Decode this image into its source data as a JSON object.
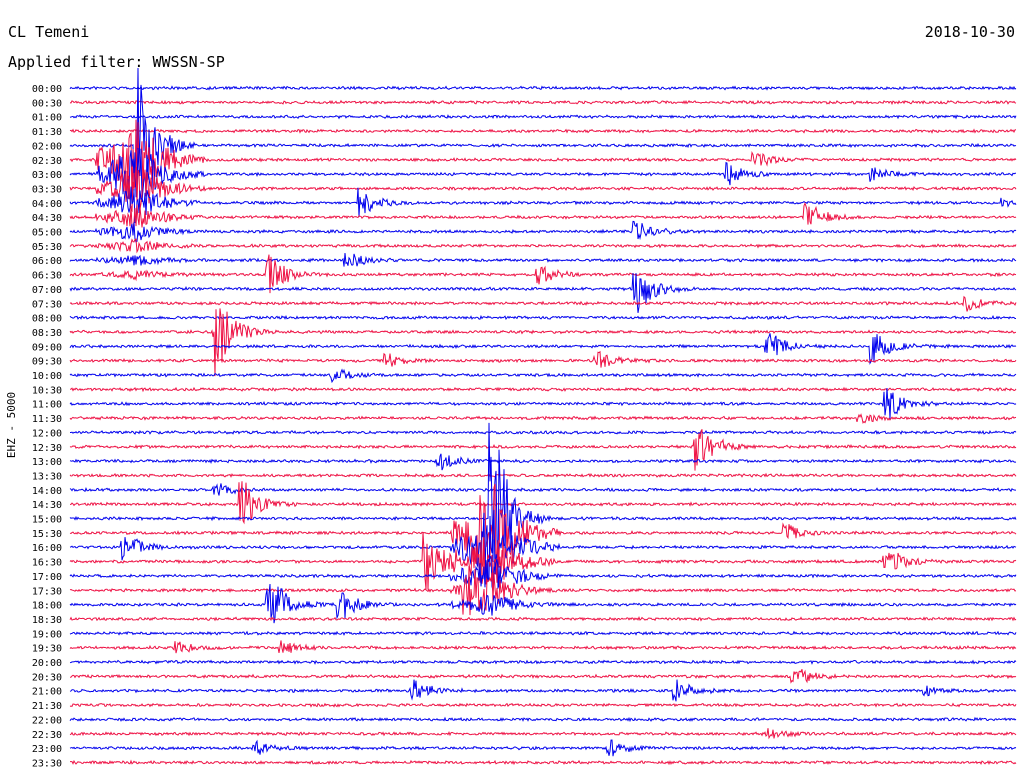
{
  "header": {
    "station": "CL Temeni",
    "date": "2018-10-30",
    "filter_label": "Applied filter: WWSSN-SP"
  },
  "chart_data": {
    "type": "line",
    "title": "CL Temeni",
    "subtitle": "Applied filter: WWSSN-SP",
    "ylabel": "EHZ - 5000",
    "xlabel": "",
    "grid": false,
    "legend": "none",
    "trace_times": [
      "00:00",
      "00:30",
      "01:00",
      "01:30",
      "02:00",
      "02:30",
      "03:00",
      "03:30",
      "04:00",
      "04:30",
      "05:00",
      "05:30",
      "06:00",
      "06:30",
      "07:00",
      "07:30",
      "08:00",
      "08:30",
      "09:00",
      "09:30",
      "10:00",
      "10:30",
      "11:00",
      "11:30",
      "12:00",
      "12:30",
      "13:00",
      "13:30",
      "14:00",
      "14:30",
      "15:00",
      "15:30",
      "16:00",
      "16:30",
      "17:00",
      "17:30",
      "18:00",
      "18:30",
      "19:00",
      "19:30",
      "20:00",
      "20:30",
      "21:00",
      "21:30",
      "22:00",
      "22:30",
      "23:00",
      "23:30"
    ],
    "trace_colors": [
      "#0000ee",
      "#ee1144"
    ],
    "events": [
      {
        "start": "02:00",
        "minute": 2.5,
        "lines": 10,
        "amp": 5.0
      },
      {
        "start": "04:00",
        "minute": 11.0,
        "lines": 1,
        "amp": 0.9
      },
      {
        "start": "05:00",
        "minute": 21.5,
        "lines": 1,
        "amp": 0.8
      },
      {
        "start": "04:30",
        "minute": 28.0,
        "lines": 1,
        "amp": 0.9
      },
      {
        "start": "02:30",
        "minute": 26.0,
        "lines": 1,
        "amp": 0.5
      },
      {
        "start": "03:00",
        "minute": 25.0,
        "lines": 1,
        "amp": 0.7
      },
      {
        "start": "03:00",
        "minute": 30.5,
        "lines": 1,
        "amp": 0.4
      },
      {
        "start": "06:00",
        "minute": 10.5,
        "lines": 1,
        "amp": 0.5
      },
      {
        "start": "06:30",
        "minute": 7.5,
        "lines": 1,
        "amp": 1.3
      },
      {
        "start": "06:30",
        "minute": 17.8,
        "lines": 1,
        "amp": 0.6
      },
      {
        "start": "07:00",
        "minute": 21.5,
        "lines": 1,
        "amp": 1.6
      },
      {
        "start": "07:30",
        "minute": 34.0,
        "lines": 1,
        "amp": 0.5
      },
      {
        "start": "08:30",
        "minute": 5.5,
        "lines": 1,
        "amp": 2.8
      },
      {
        "start": "09:00",
        "minute": 26.5,
        "lines": 1,
        "amp": 0.9
      },
      {
        "start": "09:00",
        "minute": 30.5,
        "lines": 1,
        "amp": 1.0
      },
      {
        "start": "09:30",
        "minute": 12.0,
        "lines": 1,
        "amp": 0.4
      },
      {
        "start": "09:30",
        "minute": 20.0,
        "lines": 1,
        "amp": 0.5
      },
      {
        "start": "10:00",
        "minute": 10.0,
        "lines": 1,
        "amp": 0.4
      },
      {
        "start": "11:00",
        "minute": 31.0,
        "lines": 1,
        "amp": 1.0
      },
      {
        "start": "12:30",
        "minute": 23.8,
        "lines": 1,
        "amp": 1.9
      },
      {
        "start": "13:00",
        "minute": 14.0,
        "lines": 1,
        "amp": 0.5
      },
      {
        "start": "14:30",
        "minute": 6.5,
        "lines": 1,
        "amp": 1.4
      },
      {
        "start": "14:00",
        "minute": 5.5,
        "lines": 1,
        "amp": 0.4
      },
      {
        "start": "15:00",
        "minute": 16.0,
        "lines": 7,
        "amp": 6.0
      },
      {
        "start": "16:00",
        "minute": 2.0,
        "lines": 1,
        "amp": 0.9
      },
      {
        "start": "16:30",
        "minute": 13.5,
        "lines": 1,
        "amp": 2.0
      },
      {
        "start": "17:30",
        "minute": 15.0,
        "lines": 1,
        "amp": 1.3
      },
      {
        "start": "16:30",
        "minute": 31.0,
        "lines": 1,
        "amp": 0.4
      },
      {
        "start": "18:00",
        "minute": 7.5,
        "lines": 1,
        "amp": 2.0
      },
      {
        "start": "18:00",
        "minute": 10.2,
        "lines": 1,
        "amp": 1.0
      },
      {
        "start": "19:30",
        "minute": 8.0,
        "lines": 1,
        "amp": 0.4
      },
      {
        "start": "19:30",
        "minute": 4.0,
        "lines": 1,
        "amp": 0.4
      },
      {
        "start": "20:30",
        "minute": 27.5,
        "lines": 1,
        "amp": 0.6
      },
      {
        "start": "21:00",
        "minute": 13.0,
        "lines": 1,
        "amp": 0.7
      },
      {
        "start": "21:00",
        "minute": 23.0,
        "lines": 1,
        "amp": 0.7
      },
      {
        "start": "21:00",
        "minute": 32.5,
        "lines": 1,
        "amp": 0.3
      },
      {
        "start": "22:30",
        "minute": 26.5,
        "lines": 1,
        "amp": 0.4
      },
      {
        "start": "23:00",
        "minute": 7.0,
        "lines": 1,
        "amp": 0.4
      },
      {
        "start": "23:00",
        "minute": 20.5,
        "lines": 1,
        "amp": 0.5
      },
      {
        "start": "15:30",
        "minute": 27.2,
        "lines": 1,
        "amp": 0.5
      },
      {
        "start": "16:30",
        "minute": 31.2,
        "lines": 1,
        "amp": 0.4
      },
      {
        "start": "04:00",
        "minute": 35.5,
        "lines": 1,
        "amp": 0.3
      },
      {
        "start": "11:30",
        "minute": 30.0,
        "lines": 1,
        "amp": 0.3
      }
    ]
  }
}
